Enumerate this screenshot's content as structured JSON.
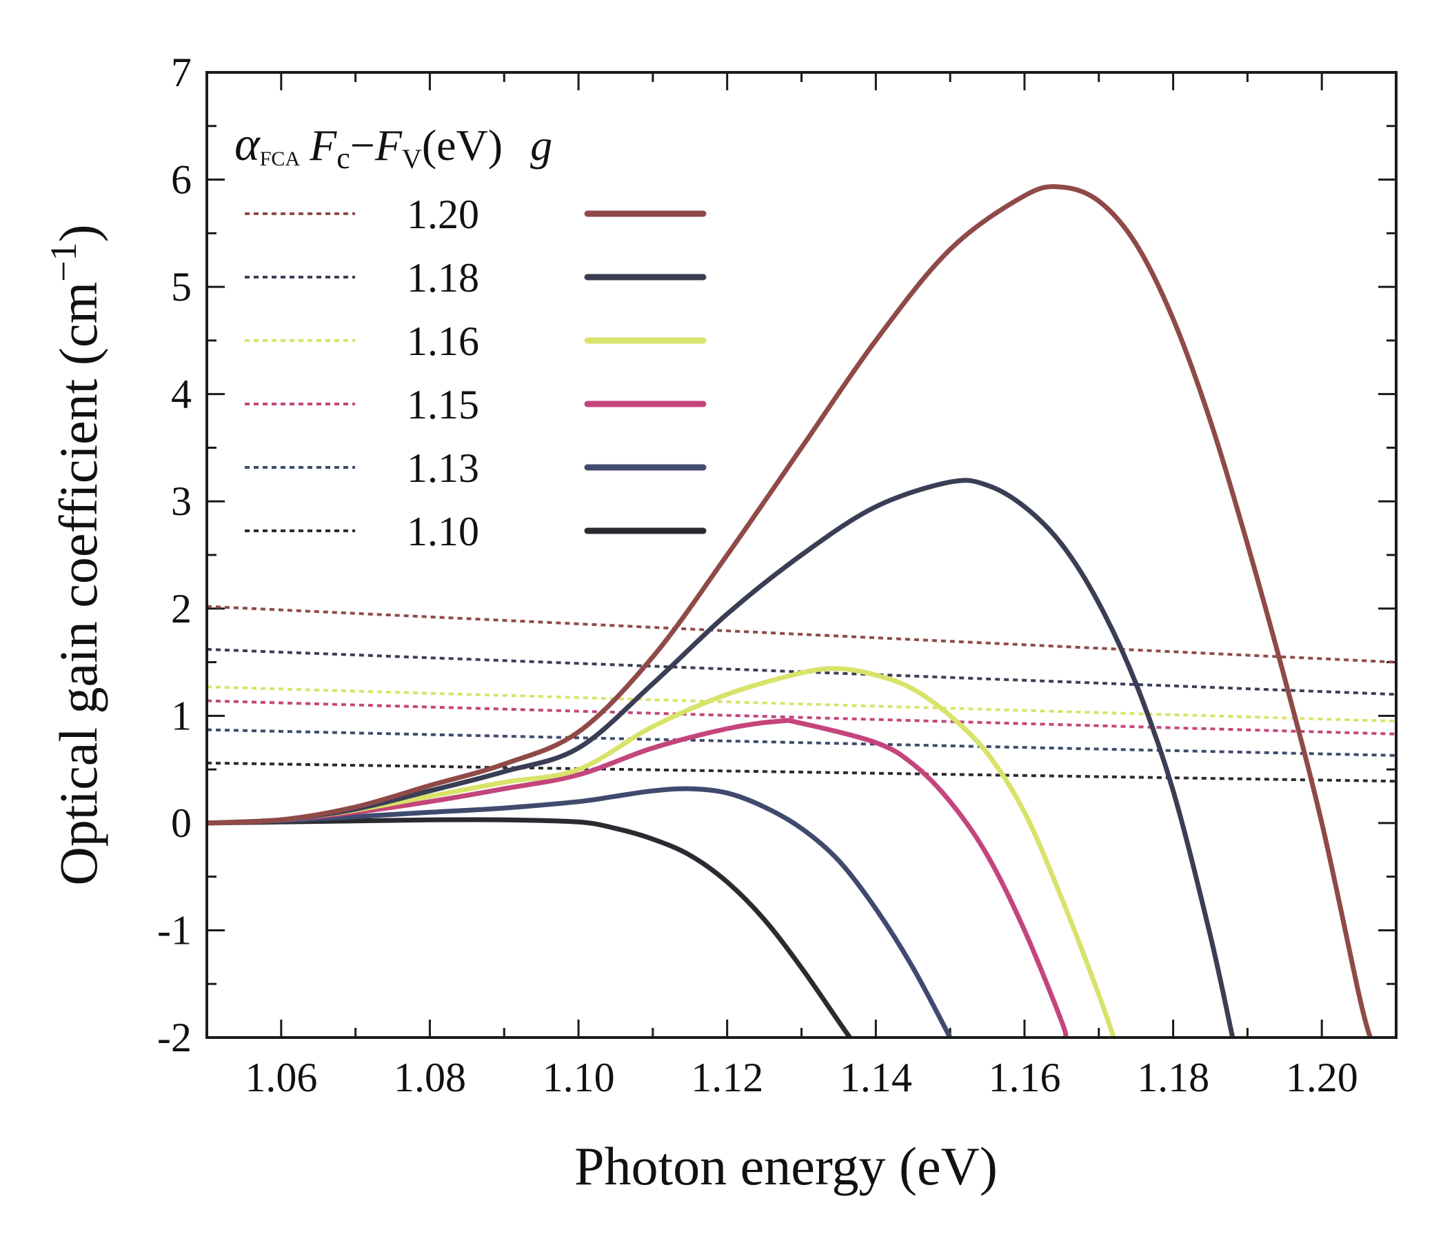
{
  "chart_data": {
    "type": "line",
    "xlabel": "Photon energy (eV)",
    "ylabel_main": "Optical gain coefficient (cm",
    "ylabel_sup": "−1",
    "ylabel_close": ")",
    "xlim": [
      1.05,
      1.21
    ],
    "ylim": [
      -2,
      7
    ],
    "xticks": [
      1.06,
      1.08,
      1.1,
      1.12,
      1.14,
      1.16,
      1.18,
      1.2
    ],
    "xtick_labels": [
      "1.06",
      "1.08",
      "1.10",
      "1.12",
      "1.14",
      "1.16",
      "1.18",
      "1.20"
    ],
    "yticks": [
      -2,
      -1,
      0,
      1,
      2,
      3,
      4,
      5,
      6,
      7
    ],
    "ytick_labels": [
      "-2",
      "-1",
      "0",
      "1",
      "2",
      "3",
      "4",
      "5",
      "6",
      "7"
    ],
    "legend": {
      "placement": "top-left",
      "header": {
        "alpha": "α",
        "alpha_sub": "FCA",
        "fc": "F",
        "fc_sub": "c",
        "dash": "−",
        "fv": "F",
        "fv_sub": "V",
        "unit": "(eV)",
        "g": "g"
      }
    },
    "series": [
      {
        "name": "1.20",
        "color": "#8f4a48",
        "fca": [
          [
            1.05,
            2.02
          ],
          [
            1.21,
            1.5
          ]
        ],
        "gain": [
          [
            1.05,
            0.0
          ],
          [
            1.06,
            0.03
          ],
          [
            1.07,
            0.15
          ],
          [
            1.08,
            0.35
          ],
          [
            1.09,
            0.55
          ],
          [
            1.1,
            0.85
          ],
          [
            1.11,
            1.55
          ],
          [
            1.12,
            2.5
          ],
          [
            1.13,
            3.5
          ],
          [
            1.14,
            4.5
          ],
          [
            1.15,
            5.35
          ],
          [
            1.16,
            5.85
          ],
          [
            1.165,
            5.93
          ],
          [
            1.17,
            5.8
          ],
          [
            1.175,
            5.4
          ],
          [
            1.18,
            4.7
          ],
          [
            1.185,
            3.75
          ],
          [
            1.19,
            2.6
          ],
          [
            1.195,
            1.35
          ],
          [
            1.2,
            0.0
          ],
          [
            1.205,
            -1.6
          ],
          [
            1.2065,
            -2.0
          ]
        ]
      },
      {
        "name": "1.18",
        "color": "#3a3e55",
        "fca": [
          [
            1.05,
            1.62
          ],
          [
            1.21,
            1.2
          ]
        ],
        "gain": [
          [
            1.05,
            0.0
          ],
          [
            1.06,
            0.03
          ],
          [
            1.07,
            0.13
          ],
          [
            1.08,
            0.3
          ],
          [
            1.09,
            0.48
          ],
          [
            1.1,
            0.7
          ],
          [
            1.11,
            1.3
          ],
          [
            1.12,
            1.95
          ],
          [
            1.13,
            2.5
          ],
          [
            1.14,
            2.95
          ],
          [
            1.15,
            3.18
          ],
          [
            1.155,
            3.15
          ],
          [
            1.16,
            2.95
          ],
          [
            1.165,
            2.6
          ],
          [
            1.17,
            2.05
          ],
          [
            1.175,
            1.3
          ],
          [
            1.18,
            0.3
          ],
          [
            1.185,
            -1.05
          ],
          [
            1.188,
            -2.0
          ]
        ]
      },
      {
        "name": "1.16",
        "color": "#d8e36a",
        "fca": [
          [
            1.05,
            1.27
          ],
          [
            1.21,
            0.95
          ]
        ],
        "gain": [
          [
            1.05,
            0.0
          ],
          [
            1.06,
            0.03
          ],
          [
            1.07,
            0.12
          ],
          [
            1.08,
            0.25
          ],
          [
            1.09,
            0.38
          ],
          [
            1.1,
            0.5
          ],
          [
            1.11,
            0.9
          ],
          [
            1.12,
            1.2
          ],
          [
            1.13,
            1.4
          ],
          [
            1.135,
            1.44
          ],
          [
            1.14,
            1.38
          ],
          [
            1.145,
            1.25
          ],
          [
            1.15,
            1.0
          ],
          [
            1.155,
            0.65
          ],
          [
            1.16,
            0.1
          ],
          [
            1.165,
            -0.7
          ],
          [
            1.17,
            -1.6
          ],
          [
            1.172,
            -2.0
          ]
        ]
      },
      {
        "name": "1.15",
        "color": "#c4457c",
        "fca": [
          [
            1.05,
            1.14
          ],
          [
            1.21,
            0.83
          ]
        ],
        "gain": [
          [
            1.05,
            0.0
          ],
          [
            1.06,
            0.03
          ],
          [
            1.07,
            0.1
          ],
          [
            1.08,
            0.2
          ],
          [
            1.09,
            0.32
          ],
          [
            1.1,
            0.45
          ],
          [
            1.11,
            0.7
          ],
          [
            1.12,
            0.88
          ],
          [
            1.127,
            0.95
          ],
          [
            1.13,
            0.93
          ],
          [
            1.14,
            0.75
          ],
          [
            1.145,
            0.55
          ],
          [
            1.15,
            0.2
          ],
          [
            1.155,
            -0.3
          ],
          [
            1.16,
            -1.0
          ],
          [
            1.165,
            -1.85
          ],
          [
            1.1655,
            -2.0
          ]
        ]
      },
      {
        "name": "1.13",
        "color": "#3f4a6e",
        "fca": [
          [
            1.05,
            0.87
          ],
          [
            1.21,
            0.63
          ]
        ],
        "gain": [
          [
            1.05,
            0.0
          ],
          [
            1.06,
            0.02
          ],
          [
            1.07,
            0.06
          ],
          [
            1.08,
            0.1
          ],
          [
            1.09,
            0.14
          ],
          [
            1.1,
            0.2
          ],
          [
            1.105,
            0.25
          ],
          [
            1.11,
            0.3
          ],
          [
            1.115,
            0.32
          ],
          [
            1.12,
            0.28
          ],
          [
            1.125,
            0.15
          ],
          [
            1.13,
            -0.05
          ],
          [
            1.135,
            -0.35
          ],
          [
            1.14,
            -0.8
          ],
          [
            1.145,
            -1.35
          ],
          [
            1.15,
            -2.0
          ]
        ]
      },
      {
        "name": "1.10",
        "color": "#2a2a30",
        "fca": [
          [
            1.05,
            0.56
          ],
          [
            1.21,
            0.39
          ]
        ],
        "gain": [
          [
            1.05,
            0.0
          ],
          [
            1.06,
            0.01
          ],
          [
            1.07,
            0.02
          ],
          [
            1.08,
            0.03
          ],
          [
            1.09,
            0.03
          ],
          [
            1.1,
            0.01
          ],
          [
            1.105,
            -0.05
          ],
          [
            1.11,
            -0.15
          ],
          [
            1.115,
            -0.3
          ],
          [
            1.12,
            -0.55
          ],
          [
            1.125,
            -0.9
          ],
          [
            1.13,
            -1.35
          ],
          [
            1.135,
            -1.85
          ],
          [
            1.1365,
            -2.0
          ]
        ]
      }
    ]
  }
}
